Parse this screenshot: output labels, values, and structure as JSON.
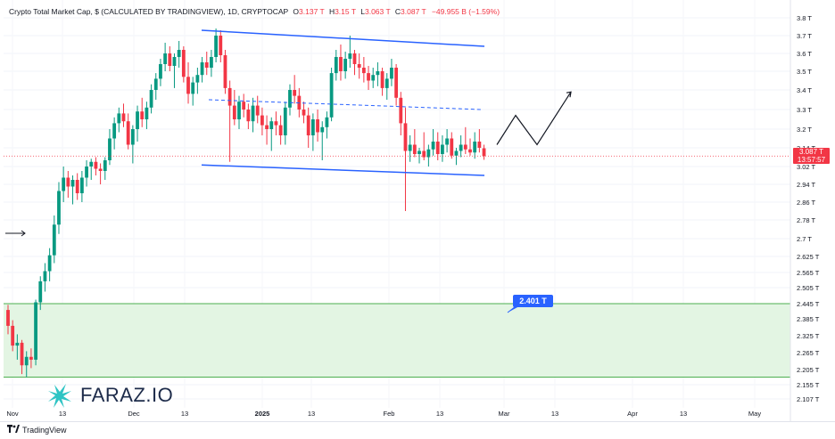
{
  "header": {
    "title": "Crypto Total Market Cap, $ (CALCULATED BY TRADINGVIEW), 1D, CRYPTOCAP",
    "open_label": "O",
    "open": "3.137 T",
    "high_label": "H",
    "high": "3.15 T",
    "low_label": "L",
    "low": "3.063 T",
    "close_label": "C",
    "close": "3.087 T",
    "change": "−49.955 B (−1.59%)"
  },
  "price_tag": {
    "price": "3.087 T",
    "countdown": "13:57:57"
  },
  "callout": {
    "label": "2.401 T"
  },
  "brand": {
    "name": "FARAZ.IO"
  },
  "footer": {
    "platform": "TradingView"
  },
  "colors": {
    "up": "#089981",
    "down": "#f23645",
    "channel": "#2962ff",
    "zone_fill": "#e3f5e3",
    "zone_line": "#4caf50"
  },
  "chart_data": {
    "type": "candlestick",
    "y_ticks": [
      "3.8 T",
      "3.7 T",
      "3.6 T",
      "3.5 T",
      "3.4 T",
      "3.3 T",
      "3.2 T",
      "3.14 T",
      "3.02 T",
      "2.94 T",
      "2.86 T",
      "2.78 T",
      "2.7 T",
      "2.625 T",
      "2.565 T",
      "2.505 T",
      "2.445 T",
      "2.385 T",
      "2.325 T",
      "2.265 T",
      "2.205 T",
      "2.155 T",
      "2.107 T"
    ],
    "x_ticks": [
      "Nov",
      "13",
      "Dec",
      "13",
      "2025",
      "13",
      "Feb",
      "13",
      "Mar",
      "13",
      "Apr",
      "13",
      "May"
    ],
    "last_close": 3.087,
    "support_zone": {
      "top": 2.445,
      "bottom": 2.18
    },
    "channel_upper": [
      3.73,
      3.64
    ],
    "channel_mid": [
      3.35,
      3.3
    ],
    "channel_lower": [
      3.03,
      2.98
    ],
    "projection": [
      3.15,
      3.27,
      3.15,
      3.39
    ],
    "ohlc": [
      [
        2.42,
        2.44,
        2.33,
        2.36
      ],
      [
        2.36,
        2.38,
        2.27,
        2.29
      ],
      [
        2.29,
        2.33,
        2.24,
        2.3
      ],
      [
        2.3,
        2.31,
        2.19,
        2.22
      ],
      [
        2.22,
        2.27,
        2.18,
        2.25
      ],
      [
        2.25,
        2.28,
        2.21,
        2.24
      ],
      [
        2.24,
        2.46,
        2.22,
        2.45
      ],
      [
        2.45,
        2.55,
        2.42,
        2.53
      ],
      [
        2.53,
        2.6,
        2.49,
        2.57
      ],
      [
        2.57,
        2.66,
        2.53,
        2.63
      ],
      [
        2.63,
        2.8,
        2.6,
        2.76
      ],
      [
        2.76,
        2.95,
        2.72,
        2.91
      ],
      [
        2.91,
        3.02,
        2.86,
        2.97
      ],
      [
        2.97,
        3.0,
        2.88,
        2.93
      ],
      [
        2.93,
        2.98,
        2.85,
        2.96
      ],
      [
        2.96,
        2.99,
        2.87,
        2.9
      ],
      [
        2.9,
        3.0,
        2.86,
        2.97
      ],
      [
        2.97,
        3.06,
        2.93,
        3.02
      ],
      [
        3.02,
        3.07,
        2.96,
        3.05
      ],
      [
        3.05,
        3.08,
        2.98,
        3.01
      ],
      [
        3.01,
        3.04,
        2.94,
        3.0
      ],
      [
        3.0,
        3.08,
        2.96,
        3.06
      ],
      [
        3.06,
        3.2,
        3.03,
        3.17
      ],
      [
        3.17,
        3.26,
        3.13,
        3.23
      ],
      [
        3.23,
        3.31,
        3.19,
        3.28
      ],
      [
        3.28,
        3.33,
        3.21,
        3.24
      ],
      [
        3.24,
        3.28,
        3.13,
        3.15
      ],
      [
        3.15,
        3.22,
        3.04,
        3.2
      ],
      [
        3.2,
        3.32,
        3.16,
        3.29
      ],
      [
        3.29,
        3.36,
        3.21,
        3.25
      ],
      [
        3.25,
        3.34,
        3.2,
        3.31
      ],
      [
        3.31,
        3.43,
        3.28,
        3.4
      ],
      [
        3.4,
        3.49,
        3.35,
        3.46
      ],
      [
        3.46,
        3.57,
        3.42,
        3.54
      ],
      [
        3.54,
        3.66,
        3.5,
        3.6
      ],
      [
        3.6,
        3.64,
        3.5,
        3.53
      ],
      [
        3.53,
        3.6,
        3.41,
        3.58
      ],
      [
        3.58,
        3.67,
        3.52,
        3.62
      ],
      [
        3.62,
        3.64,
        3.44,
        3.47
      ],
      [
        3.47,
        3.55,
        3.33,
        3.38
      ],
      [
        3.38,
        3.47,
        3.32,
        3.44
      ],
      [
        3.44,
        3.52,
        3.38,
        3.48
      ],
      [
        3.48,
        3.58,
        3.44,
        3.55
      ],
      [
        3.55,
        3.61,
        3.48,
        3.52
      ],
      [
        3.52,
        3.62,
        3.47,
        3.58
      ],
      [
        3.58,
        3.74,
        3.55,
        3.7
      ],
      [
        3.7,
        3.73,
        3.55,
        3.59
      ],
      [
        3.59,
        3.62,
        3.38,
        3.41
      ],
      [
        3.41,
        3.45,
        3.05,
        3.32
      ],
      [
        3.32,
        3.4,
        3.22,
        3.25
      ],
      [
        3.25,
        3.37,
        3.2,
        3.34
      ],
      [
        3.34,
        3.38,
        3.26,
        3.3
      ],
      [
        3.3,
        3.33,
        3.2,
        3.24
      ],
      [
        3.24,
        3.36,
        3.19,
        3.32
      ],
      [
        3.32,
        3.37,
        3.23,
        3.27
      ],
      [
        3.27,
        3.31,
        3.18,
        3.22
      ],
      [
        3.22,
        3.27,
        3.15,
        3.2
      ],
      [
        3.2,
        3.26,
        3.12,
        3.24
      ],
      [
        3.24,
        3.29,
        3.18,
        3.22
      ],
      [
        3.22,
        3.27,
        3.15,
        3.18
      ],
      [
        3.18,
        3.34,
        3.15,
        3.31
      ],
      [
        3.31,
        3.43,
        3.27,
        3.4
      ],
      [
        3.4,
        3.48,
        3.33,
        3.37
      ],
      [
        3.37,
        3.41,
        3.26,
        3.3
      ],
      [
        3.3,
        3.34,
        3.23,
        3.27
      ],
      [
        3.27,
        3.31,
        3.14,
        3.18
      ],
      [
        3.18,
        3.28,
        3.12,
        3.25
      ],
      [
        3.25,
        3.3,
        3.16,
        3.19
      ],
      [
        3.19,
        3.24,
        3.06,
        3.21
      ],
      [
        3.21,
        3.29,
        3.17,
        3.26
      ],
      [
        3.26,
        3.52,
        3.24,
        3.49
      ],
      [
        3.49,
        3.62,
        3.45,
        3.58
      ],
      [
        3.58,
        3.65,
        3.45,
        3.5
      ],
      [
        3.5,
        3.61,
        3.46,
        3.57
      ],
      [
        3.57,
        3.7,
        3.52,
        3.6
      ],
      [
        3.6,
        3.62,
        3.48,
        3.54
      ],
      [
        3.54,
        3.6,
        3.46,
        3.52
      ],
      [
        3.52,
        3.58,
        3.44,
        3.49
      ],
      [
        3.49,
        3.53,
        3.4,
        3.45
      ],
      [
        3.45,
        3.52,
        3.41,
        3.48
      ],
      [
        3.48,
        3.55,
        3.42,
        3.5
      ],
      [
        3.5,
        3.52,
        3.37,
        3.41
      ],
      [
        3.41,
        3.49,
        3.35,
        3.46
      ],
      [
        3.46,
        3.57,
        3.42,
        3.52
      ],
      [
        3.52,
        3.54,
        3.32,
        3.36
      ],
      [
        3.36,
        3.39,
        3.18,
        3.23
      ],
      [
        3.23,
        3.31,
        2.82,
        3.12
      ],
      [
        3.12,
        3.18,
        3.05,
        3.15
      ],
      [
        3.15,
        3.2,
        3.08,
        3.1
      ],
      [
        3.1,
        3.14,
        3.04,
        3.12
      ],
      [
        3.12,
        3.19,
        3.06,
        3.08
      ],
      [
        3.08,
        3.15,
        3.02,
        3.13
      ],
      [
        3.13,
        3.2,
        3.09,
        3.16
      ],
      [
        3.16,
        3.19,
        3.06,
        3.1
      ],
      [
        3.1,
        3.18,
        3.05,
        3.15
      ],
      [
        3.15,
        3.2,
        3.11,
        3.17
      ],
      [
        3.17,
        3.19,
        3.07,
        3.09
      ],
      [
        3.09,
        3.14,
        3.03,
        3.12
      ],
      [
        3.12,
        3.18,
        3.08,
        3.15
      ],
      [
        3.15,
        3.21,
        3.1,
        3.13
      ],
      [
        3.13,
        3.17,
        3.09,
        3.11
      ],
      [
        3.11,
        3.19,
        3.07,
        3.16
      ],
      [
        3.16,
        3.2,
        3.11,
        3.14
      ],
      [
        3.137,
        3.15,
        3.063,
        3.087
      ]
    ]
  }
}
